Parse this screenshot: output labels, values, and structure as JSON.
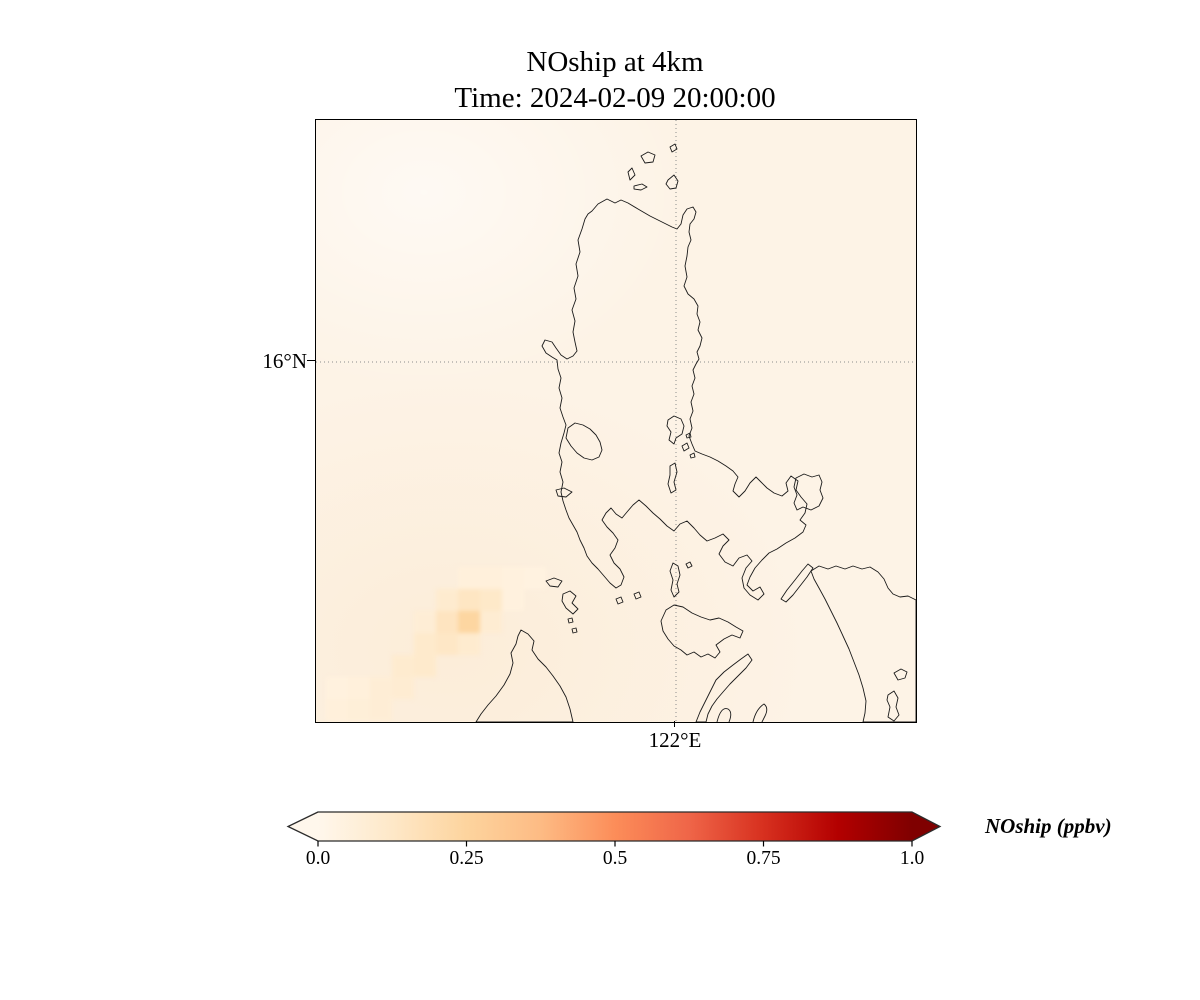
{
  "title": {
    "line1": "NOship at 4km",
    "line2": "Time: 2024-02-09 20:00:00"
  },
  "axes": {
    "y_tick_label": "16°N",
    "x_tick_label": "122°E"
  },
  "colorbar": {
    "label": "NOship (ppbv)",
    "tick_labels": [
      "0.0",
      "0.25",
      "0.5",
      "0.75",
      "1.0"
    ],
    "tick_values": [
      0,
      0.25,
      0.5,
      0.75,
      1.0
    ]
  },
  "chart_data": {
    "type": "heatmap",
    "title": "NOship at 4km",
    "subtitle": "Time: 2024-02-09 20:00:00",
    "variable": "NOship",
    "units": "ppbv",
    "level": "4km",
    "time": "2024-02-09 20:00:00",
    "region": "Philippines (Luzon and surrounding islands)",
    "projection_extent": {
      "lon_min": 118.4,
      "lon_max": 124.4,
      "lat_min": 12.4,
      "lat_max": 18.42
    },
    "gridlines": {
      "lat": [
        16
      ],
      "lon": [
        122
      ]
    },
    "value_range": [
      0,
      1
    ],
    "colorbar_ticks": [
      0,
      0.25,
      0.5,
      0.75,
      1.0
    ],
    "colormap": "OrRd",
    "colormap_stops": [
      {
        "t": 0.0,
        "color": "#fff7ec"
      },
      {
        "t": 0.125,
        "color": "#fee8c8"
      },
      {
        "t": 0.25,
        "color": "#fdd49e"
      },
      {
        "t": 0.375,
        "color": "#fdbb84"
      },
      {
        "t": 0.5,
        "color": "#fc8d59"
      },
      {
        "t": 0.625,
        "color": "#ef6548"
      },
      {
        "t": 0.75,
        "color": "#d7301f"
      },
      {
        "t": 0.875,
        "color": "#b30000"
      },
      {
        "t": 1.0,
        "color": "#7f0000"
      }
    ],
    "under_color": "#fff7ec",
    "over_color": "#7f0000",
    "extend": "both",
    "background_value": 0.02,
    "grid_cell_size_deg": 0.22,
    "plume": {
      "description": "Diagonal NE-SW ship-track plume over the sea west of Mindoro; peak ~0.24 ppbv near 119.9E 13.4N, fading tail toward the southwest map corner.",
      "peak": {
        "lon": 119.93,
        "lat": 13.4,
        "value": 0.24
      },
      "cells": [
        {
          "lon": 119.93,
          "lat": 13.4,
          "value": 0.24
        },
        {
          "lon": 119.71,
          "lat": 13.4,
          "value": 0.15
        },
        {
          "lon": 119.93,
          "lat": 13.62,
          "value": 0.14
        },
        {
          "lon": 119.71,
          "lat": 13.18,
          "value": 0.13
        },
        {
          "lon": 120.15,
          "lat": 13.62,
          "value": 0.12
        },
        {
          "lon": 119.49,
          "lat": 13.18,
          "value": 0.11
        },
        {
          "lon": 119.49,
          "lat": 12.96,
          "value": 0.11
        },
        {
          "lon": 119.93,
          "lat": 13.18,
          "value": 0.1
        },
        {
          "lon": 119.71,
          "lat": 13.62,
          "value": 0.1
        },
        {
          "lon": 119.27,
          "lat": 12.96,
          "value": 0.1
        },
        {
          "lon": 120.15,
          "lat": 13.4,
          "value": 0.09
        },
        {
          "lon": 119.27,
          "lat": 12.74,
          "value": 0.09
        },
        {
          "lon": 119.49,
          "lat": 13.4,
          "value": 0.08
        },
        {
          "lon": 119.05,
          "lat": 12.74,
          "value": 0.08
        },
        {
          "lon": 119.05,
          "lat": 12.52,
          "value": 0.08
        },
        {
          "lon": 118.83,
          "lat": 12.52,
          "value": 0.07
        },
        {
          "lon": 118.83,
          "lat": 12.74,
          "value": 0.06
        },
        {
          "lon": 118.61,
          "lat": 12.52,
          "value": 0.06
        },
        {
          "lon": 120.15,
          "lat": 13.84,
          "value": 0.06
        },
        {
          "lon": 119.93,
          "lat": 13.84,
          "value": 0.06
        },
        {
          "lon": 120.37,
          "lat": 13.84,
          "value": 0.05
        },
        {
          "lon": 120.37,
          "lat": 13.62,
          "value": 0.05
        },
        {
          "lon": 118.61,
          "lat": 12.74,
          "value": 0.05
        },
        {
          "lon": 120.59,
          "lat": 13.84,
          "value": 0.04
        }
      ]
    }
  }
}
